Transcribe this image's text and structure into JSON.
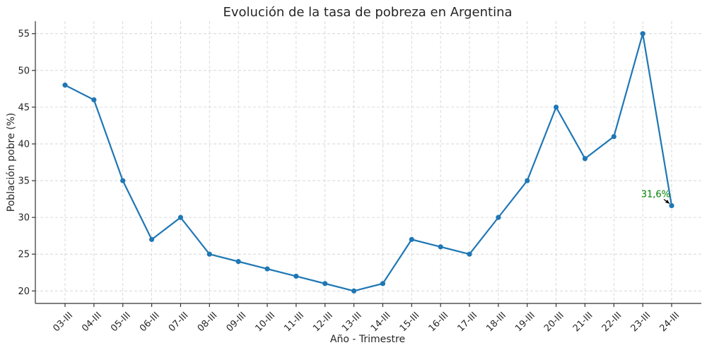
{
  "chart_data": {
    "type": "line",
    "title": "Evolución de la tasa de pobreza en Argentina",
    "xlabel": "Año - Trimestre",
    "ylabel": "Población pobre (%)",
    "categories": [
      "03-III",
      "04-III",
      "05-III",
      "06-III",
      "07-III",
      "08-III",
      "09-III",
      "10-III",
      "11-III",
      "12-III",
      "13-III",
      "14-III",
      "15-III",
      "16-III",
      "17-III",
      "18-III",
      "19-III",
      "20-III",
      "21-III",
      "22-III",
      "23-III",
      "24-III"
    ],
    "series": [
      {
        "values": [
          48,
          46,
          35,
          27,
          30,
          25,
          24,
          23,
          22,
          21,
          20,
          21,
          27,
          26,
          25,
          30,
          35,
          45,
          38,
          41,
          55,
          31.6
        ]
      }
    ],
    "ylim": [
      18.3,
      56.7
    ],
    "yticks": [
      20,
      25,
      30,
      35,
      40,
      45,
      50,
      55
    ],
    "grid": true,
    "annotation": {
      "text": "31,6%",
      "category": "24-III",
      "value": 31.6
    },
    "colors": {
      "line": "#1f77b4",
      "annotation": "#008000",
      "arrow": "#000000"
    }
  }
}
